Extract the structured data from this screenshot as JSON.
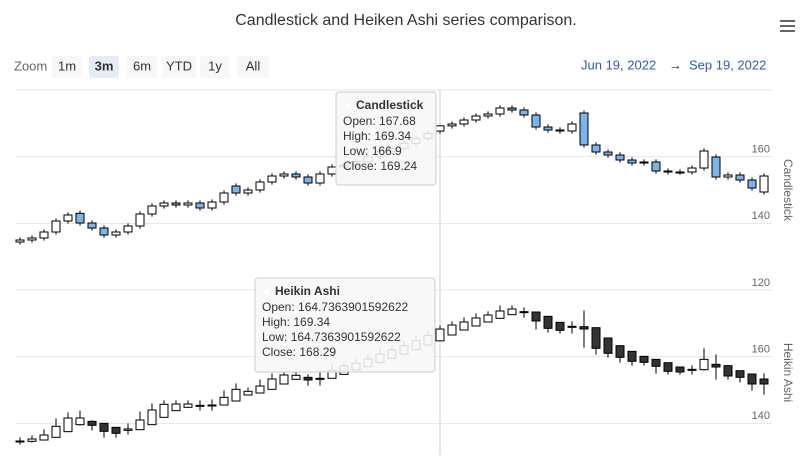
{
  "title": "Candlestick and Heiken Ashi series comparison.",
  "zoom": {
    "label": "Zoom",
    "buttons": [
      "1m",
      "3m",
      "6m",
      "YTD",
      "1y",
      "All"
    ],
    "selected": 1
  },
  "range": {
    "from": "Jun 19, 2022",
    "separator": "→",
    "to": "Sep 19, 2022"
  },
  "tooltip_labels": [
    "Open:",
    "High:",
    "Low:",
    "Close:"
  ],
  "chart_data": [
    {
      "type": "candlestick",
      "name": "Candlestick",
      "up_color": "#ffffff",
      "down_color": "#7cb5ec",
      "line_color": "#000000",
      "ylim": [
        120,
        180
      ],
      "yticks": [
        120,
        140,
        160
      ],
      "grid": true,
      "open": [
        134.4,
        135.0,
        135.6,
        137.4,
        140.7,
        143.0,
        140.1,
        138.6,
        136.5,
        137.4,
        139.2,
        142.8,
        145.2,
        146.1,
        145.5,
        146.1,
        144.6,
        146.4,
        151.2,
        149.1,
        150.0,
        152.4,
        154.2,
        154.8,
        153.9,
        152.1,
        154.8,
        156.9,
        157.5,
        158.5,
        160.0,
        161.5,
        162.5,
        164.0,
        165.5,
        167.68,
        169.24,
        169.8,
        171.0,
        172.2,
        172.8,
        174.6,
        174.0,
        172.5,
        168.9,
        168.0,
        167.7,
        173.1,
        163.5,
        161.4,
        160.5,
        159.0,
        158.1,
        158.4,
        155.7,
        155.4,
        155.4,
        156.6,
        159.9,
        153.9,
        154.5,
        153.0,
        149.4
      ],
      "high": [
        135.8,
        136.4,
        138.2,
        141.5,
        143.3,
        143.8,
        140.9,
        139.4,
        138.2,
        140.0,
        143.6,
        146.0,
        146.9,
        146.9,
        146.9,
        146.9,
        147.2,
        149.9,
        152.0,
        150.8,
        153.2,
        155.0,
        155.6,
        155.6,
        154.7,
        155.6,
        157.7,
        158.3,
        159.3,
        160.8,
        162.3,
        163.3,
        164.8,
        166.3,
        167.8,
        169.34,
        170.6,
        171.8,
        173.0,
        173.6,
        175.4,
        175.4,
        174.8,
        173.3,
        169.7,
        168.8,
        170.6,
        173.9,
        164.3,
        162.2,
        161.3,
        159.8,
        159.2,
        159.2,
        156.5,
        156.2,
        157.4,
        162.5,
        160.7,
        155.3,
        155.3,
        153.8,
        155.0
      ],
      "low": [
        133.6,
        134.2,
        134.8,
        136.6,
        139.9,
        139.3,
        137.8,
        135.7,
        135.7,
        136.6,
        138.4,
        142.0,
        144.4,
        144.7,
        144.7,
        143.8,
        143.8,
        145.6,
        148.3,
        148.3,
        149.2,
        151.6,
        153.4,
        153.1,
        151.3,
        151.3,
        154.0,
        156.1,
        156.7,
        157.7,
        159.2,
        160.7,
        161.7,
        163.2,
        164.7,
        166.9,
        168.4,
        169.0,
        170.2,
        171.4,
        172.0,
        173.2,
        171.7,
        168.1,
        167.2,
        166.9,
        166.9,
        162.7,
        160.6,
        159.7,
        158.2,
        157.3,
        157.3,
        154.9,
        154.6,
        154.6,
        154.6,
        155.8,
        153.1,
        153.1,
        152.2,
        149.8,
        148.6
      ],
      "close": [
        135.0,
        135.6,
        137.4,
        140.7,
        142.5,
        140.1,
        138.6,
        136.5,
        137.4,
        139.2,
        142.8,
        145.2,
        146.1,
        145.5,
        146.1,
        144.6,
        146.4,
        149.1,
        149.1,
        150.0,
        152.4,
        154.2,
        154.8,
        153.9,
        152.1,
        154.8,
        156.9,
        157.5,
        158.5,
        160.0,
        161.5,
        162.5,
        164.0,
        165.5,
        167.0,
        169.24,
        169.8,
        171.0,
        172.2,
        172.8,
        174.6,
        174.0,
        172.5,
        168.9,
        168.0,
        167.7,
        169.8,
        163.5,
        161.4,
        160.5,
        159.0,
        158.1,
        158.4,
        155.7,
        155.4,
        155.4,
        156.6,
        161.7,
        153.9,
        154.5,
        153.0,
        150.6,
        154.2
      ]
    },
    {
      "type": "heikinashi",
      "name": "Heikin Ashi",
      "up_color": "#ffffff",
      "down_color": "#333333",
      "line_color": "#000000",
      "ylim": [
        130.5,
        180
      ],
      "yticks": [
        140,
        160
      ],
      "grid": true,
      "open": [
        134.4,
        134.6,
        135.0,
        135.8,
        137.5,
        139.6,
        140.6,
        140.0,
        138.8,
        137.9,
        138.1,
        139.6,
        141.8,
        143.8,
        144.8,
        145.3,
        145.4,
        145.5,
        146.7,
        148.5,
        149.1,
        150.2,
        151.8,
        153.2,
        153.8,
        153.4,
        153.5,
        154.7,
        156.0,
        157.0,
        158.2,
        159.5,
        160.8,
        162.1,
        163.5,
        164.7363901592622,
        166.5,
        168.0,
        169.2,
        170.4,
        171.5,
        172.6,
        173.5,
        173.4,
        172.1,
        170.3,
        169.1,
        169.0,
        168.7,
        165.6,
        163.3,
        161.6,
        160.1,
        159.2,
        158.2,
        156.9,
        156.2,
        156.1,
        157.7,
        157.3,
        155.8,
        154.8,
        153.3
      ],
      "high": [
        135.8,
        136.4,
        138.2,
        141.5,
        143.3,
        143.8,
        140.9,
        140.0,
        138.8,
        140.0,
        143.6,
        146.0,
        146.9,
        146.9,
        146.9,
        146.9,
        147.2,
        149.9,
        152.0,
        150.8,
        153.2,
        155.0,
        155.6,
        155.6,
        154.7,
        155.6,
        157.7,
        158.3,
        159.3,
        160.8,
        162.3,
        163.3,
        164.8,
        166.3,
        167.8,
        169.34,
        170.6,
        171.8,
        173.0,
        173.6,
        175.4,
        175.4,
        174.8,
        173.4,
        172.1,
        170.3,
        170.6,
        173.9,
        168.7,
        165.6,
        163.3,
        161.6,
        160.1,
        159.2,
        158.2,
        156.9,
        157.4,
        162.5,
        160.7,
        157.3,
        155.8,
        154.8,
        155.0
      ],
      "low": [
        133.6,
        134.2,
        134.8,
        135.8,
        137.5,
        139.3,
        137.8,
        135.7,
        135.7,
        136.6,
        138.1,
        139.6,
        141.8,
        143.8,
        144.7,
        143.8,
        143.8,
        145.5,
        146.7,
        148.3,
        149.1,
        150.2,
        151.8,
        153.1,
        151.3,
        151.3,
        153.5,
        154.7,
        156.0,
        157.0,
        158.2,
        159.5,
        160.8,
        162.1,
        163.5,
        164.7363901592622,
        166.5,
        168.0,
        169.2,
        170.4,
        171.5,
        172.6,
        171.7,
        168.1,
        167.2,
        166.9,
        166.9,
        162.7,
        160.6,
        159.7,
        158.2,
        157.3,
        157.3,
        154.9,
        154.6,
        154.6,
        154.6,
        155.8,
        153.1,
        153.1,
        152.2,
        149.8,
        148.6
      ],
      "close": [
        134.7,
        135.3,
        136.5,
        139.1,
        141.6,
        141.6,
        139.4,
        137.6,
        137.0,
        138.3,
        141.0,
        144.0,
        145.7,
        145.8,
        145.8,
        145.4,
        145.5,
        147.8,
        150.2,
        149.6,
        151.2,
        153.3,
        154.5,
        154.4,
        153.0,
        153.5,
        155.9,
        157.2,
        158.0,
        159.3,
        160.8,
        162.0,
        163.3,
        164.8,
        166.3,
        168.29,
        169.5,
        170.4,
        171.6,
        172.5,
        173.7,
        174.3,
        173.3,
        170.7,
        168.5,
        167.9,
        168.8,
        168.3,
        162.5,
        161.0,
        159.8,
        158.6,
        158.3,
        157.1,
        155.6,
        155.4,
        156.0,
        159.2,
        156.9,
        154.2,
        153.8,
        151.8,
        151.8
      ]
    }
  ]
}
